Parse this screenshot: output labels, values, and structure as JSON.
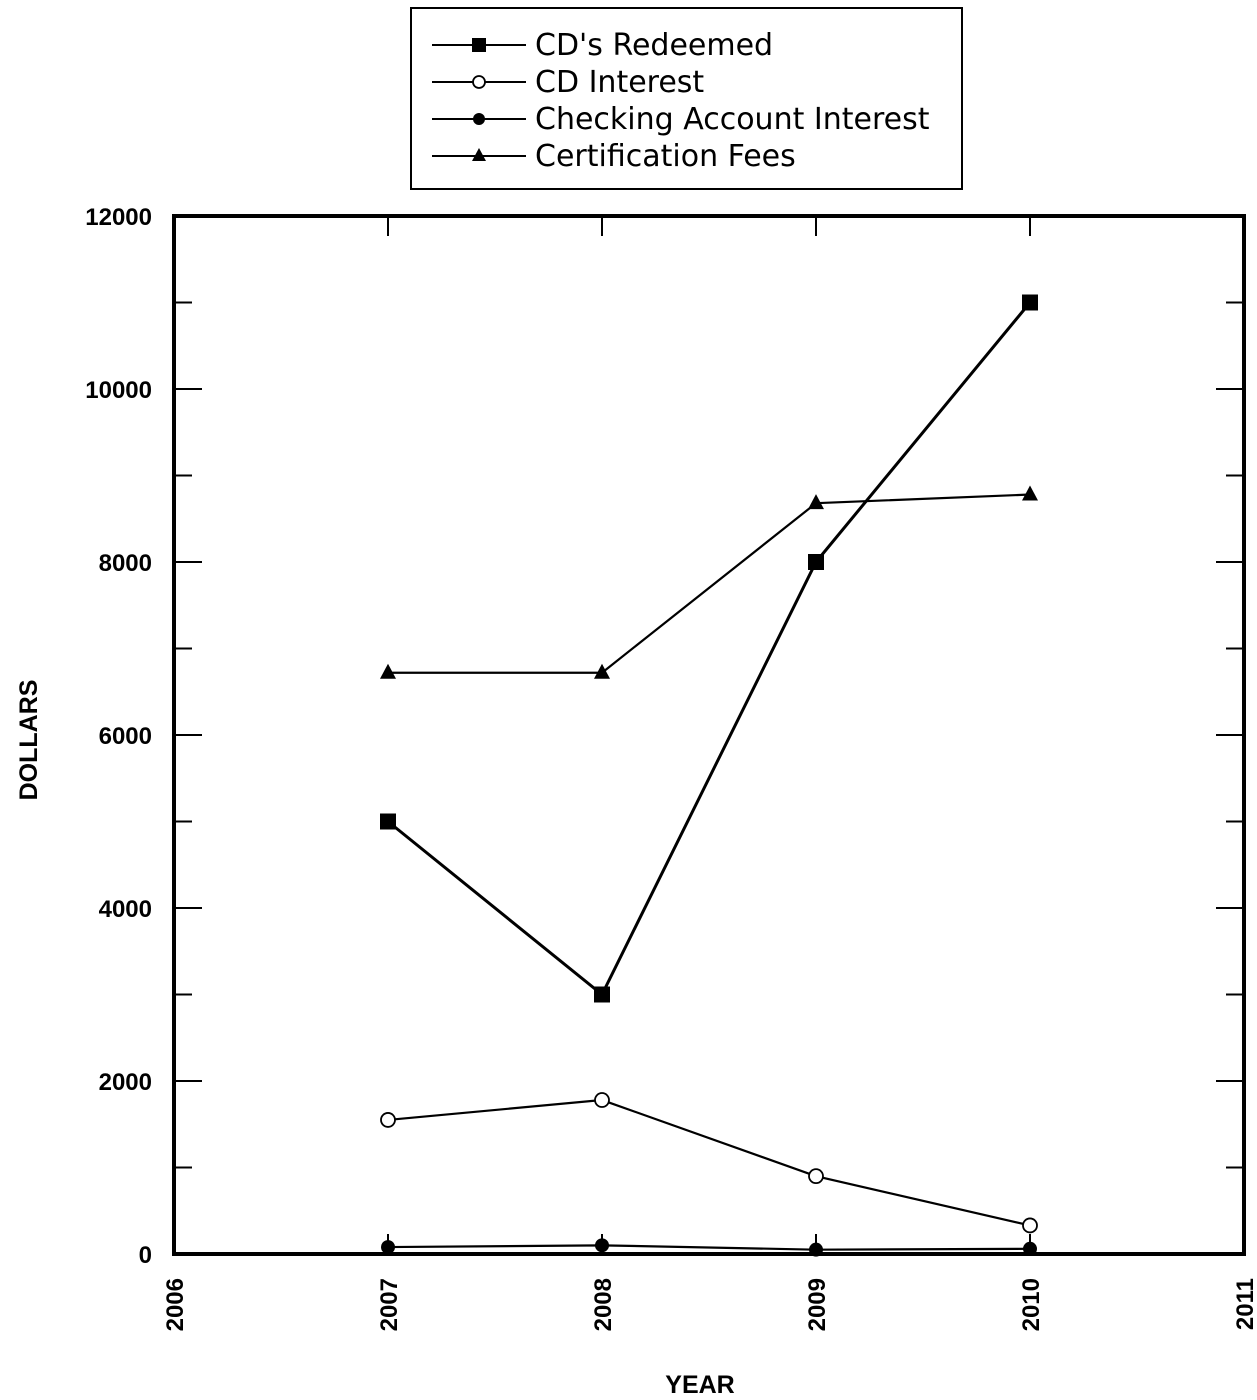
{
  "chart_data": {
    "type": "line",
    "xlabel": "YEAR",
    "ylabel": "DOLLARS",
    "xlim": [
      2006,
      2011
    ],
    "ylim": [
      0,
      12000
    ],
    "x_ticks": [
      2006,
      2007,
      2008,
      2009,
      2010,
      2011
    ],
    "y_ticks": [
      0,
      2000,
      4000,
      6000,
      8000,
      10000,
      12000
    ],
    "x": [
      2007,
      2008,
      2009,
      2010
    ],
    "grid": false,
    "legend_position": "top-center",
    "series": [
      {
        "name": "CD's Redeemed",
        "marker": "filled-square",
        "values": [
          5000,
          3000,
          8000,
          11000
        ]
      },
      {
        "name": "CD Interest",
        "marker": "open-circle",
        "values": [
          1550,
          1780,
          900,
          330
        ]
      },
      {
        "name": "Checking Account Interest",
        "marker": "filled-circle",
        "values": [
          80,
          100,
          50,
          60
        ]
      },
      {
        "name": "Certification Fees",
        "marker": "filled-triangle",
        "values": [
          6720,
          6720,
          8680,
          8780
        ]
      }
    ],
    "colors": {
      "line": "#000000",
      "background": "#ffffff"
    }
  }
}
